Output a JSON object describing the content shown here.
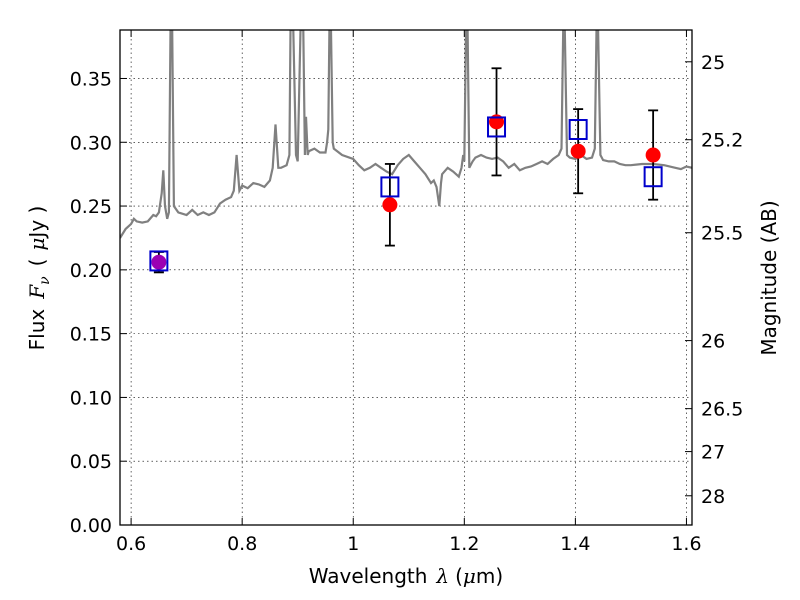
{
  "chart_data": {
    "type": "scatter",
    "xlabel": {
      "prefix": "Wavelength",
      "symbol": "λ",
      "unit_open": "(",
      "unit_mu": "μ",
      "unit_rest": "m)"
    },
    "ylabel": {
      "prefix": "Flux",
      "symbol": "F",
      "subscript": "ν",
      "unit_open": "(",
      "unit_mu": "μ",
      "unit_rest": "Jy )"
    },
    "y2label": "Magnitude (AB)",
    "xlim": [
      0.58,
      1.61
    ],
    "ylim": [
      0.0,
      0.388
    ],
    "grid": true,
    "x_ticks": [
      {
        "value": 0.6,
        "label": "0.6"
      },
      {
        "value": 0.8,
        "label": "0.8"
      },
      {
        "value": 1.0,
        "label": "1"
      },
      {
        "value": 1.2,
        "label": "1.2"
      },
      {
        "value": 1.4,
        "label": "1.4"
      },
      {
        "value": 1.6,
        "label": "1.6"
      }
    ],
    "y_ticks": [
      {
        "value": 0.0,
        "label": "0.00"
      },
      {
        "value": 0.05,
        "label": "0.05"
      },
      {
        "value": 0.1,
        "label": "0.10"
      },
      {
        "value": 0.15,
        "label": "0.15"
      },
      {
        "value": 0.2,
        "label": "0.20"
      },
      {
        "value": 0.25,
        "label": "0.25"
      },
      {
        "value": 0.3,
        "label": "0.30"
      },
      {
        "value": 0.35,
        "label": "0.35"
      }
    ],
    "y2_ticks": [
      {
        "value": 25,
        "label": "25"
      },
      {
        "value": 25.2,
        "label": "25.2"
      },
      {
        "value": 25.5,
        "label": "25.5"
      },
      {
        "value": 26,
        "label": "26"
      },
      {
        "value": 26.5,
        "label": "26.5"
      },
      {
        "value": 27,
        "label": "27"
      },
      {
        "value": 28,
        "label": "28"
      }
    ],
    "model_spectrum": {
      "color": "#808080",
      "points": [
        [
          0.58,
          0.225
        ],
        [
          0.59,
          0.232
        ],
        [
          0.6,
          0.236
        ],
        [
          0.605,
          0.24
        ],
        [
          0.61,
          0.238
        ],
        [
          0.62,
          0.237
        ],
        [
          0.63,
          0.238
        ],
        [
          0.64,
          0.243
        ],
        [
          0.645,
          0.242
        ],
        [
          0.65,
          0.245
        ],
        [
          0.655,
          0.26
        ],
        [
          0.658,
          0.278
        ],
        [
          0.661,
          0.25
        ],
        [
          0.665,
          0.24
        ],
        [
          0.668,
          0.245
        ],
        [
          0.671,
          0.388
        ],
        [
          0.674,
          0.388
        ],
        [
          0.677,
          0.25
        ],
        [
          0.685,
          0.245
        ],
        [
          0.7,
          0.243
        ],
        [
          0.71,
          0.247
        ],
        [
          0.72,
          0.243
        ],
        [
          0.73,
          0.245
        ],
        [
          0.74,
          0.243
        ],
        [
          0.75,
          0.245
        ],
        [
          0.76,
          0.252
        ],
        [
          0.77,
          0.255
        ],
        [
          0.78,
          0.257
        ],
        [
          0.785,
          0.262
        ],
        [
          0.79,
          0.29
        ],
        [
          0.795,
          0.262
        ],
        [
          0.8,
          0.266
        ],
        [
          0.81,
          0.264
        ],
        [
          0.82,
          0.268
        ],
        [
          0.83,
          0.267
        ],
        [
          0.84,
          0.265
        ],
        [
          0.85,
          0.27
        ],
        [
          0.855,
          0.28
        ],
        [
          0.86,
          0.314
        ],
        [
          0.865,
          0.28
        ],
        [
          0.87,
          0.28
        ],
        [
          0.88,
          0.282
        ],
        [
          0.885,
          0.29
        ],
        [
          0.887,
          0.388
        ],
        [
          0.892,
          0.388
        ],
        [
          0.897,
          0.29
        ],
        [
          0.9,
          0.285
        ],
        [
          0.905,
          0.388
        ],
        [
          0.91,
          0.388
        ],
        [
          0.913,
          0.29
        ],
        [
          0.915,
          0.32
        ],
        [
          0.918,
          0.29
        ],
        [
          0.92,
          0.293
        ],
        [
          0.93,
          0.295
        ],
        [
          0.94,
          0.292
        ],
        [
          0.95,
          0.292
        ],
        [
          0.953,
          0.3
        ],
        [
          0.955,
          0.31
        ],
        [
          0.957,
          0.388
        ],
        [
          0.96,
          0.388
        ],
        [
          0.963,
          0.3
        ],
        [
          0.965,
          0.295
        ],
        [
          0.98,
          0.29
        ],
        [
          1.0,
          0.287
        ],
        [
          1.01,
          0.282
        ],
        [
          1.02,
          0.278
        ],
        [
          1.03,
          0.28
        ],
        [
          1.04,
          0.283
        ],
        [
          1.05,
          0.28
        ],
        [
          1.06,
          0.277
        ],
        [
          1.07,
          0.275
        ],
        [
          1.08,
          0.282
        ],
        [
          1.09,
          0.287
        ],
        [
          1.1,
          0.29
        ],
        [
          1.11,
          0.285
        ],
        [
          1.12,
          0.28
        ],
        [
          1.13,
          0.275
        ],
        [
          1.14,
          0.268
        ],
        [
          1.145,
          0.27
        ],
        [
          1.15,
          0.265
        ],
        [
          1.155,
          0.25
        ],
        [
          1.158,
          0.268
        ],
        [
          1.16,
          0.275
        ],
        [
          1.17,
          0.28
        ],
        [
          1.18,
          0.277
        ],
        [
          1.19,
          0.273
        ],
        [
          1.195,
          0.28
        ],
        [
          1.198,
          0.29
        ],
        [
          1.2,
          0.285
        ],
        [
          1.203,
          0.388
        ],
        [
          1.206,
          0.388
        ],
        [
          1.209,
          0.28
        ],
        [
          1.215,
          0.285
        ],
        [
          1.22,
          0.288
        ],
        [
          1.23,
          0.29
        ],
        [
          1.24,
          0.288
        ],
        [
          1.25,
          0.287
        ],
        [
          1.26,
          0.288
        ],
        [
          1.27,
          0.285
        ],
        [
          1.28,
          0.28
        ],
        [
          1.29,
          0.283
        ],
        [
          1.3,
          0.278
        ],
        [
          1.31,
          0.28
        ],
        [
          1.32,
          0.281
        ],
        [
          1.33,
          0.283
        ],
        [
          1.34,
          0.285
        ],
        [
          1.35,
          0.283
        ],
        [
          1.36,
          0.287
        ],
        [
          1.37,
          0.29
        ],
        [
          1.375,
          0.295
        ],
        [
          1.378,
          0.388
        ],
        [
          1.381,
          0.388
        ],
        [
          1.385,
          0.29
        ],
        [
          1.39,
          0.288
        ],
        [
          1.4,
          0.287
        ],
        [
          1.41,
          0.29
        ],
        [
          1.42,
          0.287
        ],
        [
          1.43,
          0.288
        ],
        [
          1.435,
          0.295
        ],
        [
          1.438,
          0.388
        ],
        [
          1.441,
          0.388
        ],
        [
          1.445,
          0.29
        ],
        [
          1.45,
          0.286
        ],
        [
          1.46,
          0.285
        ],
        [
          1.47,
          0.285
        ],
        [
          1.48,
          0.283
        ],
        [
          1.49,
          0.282
        ],
        [
          1.5,
          0.282
        ],
        [
          1.52,
          0.283
        ],
        [
          1.54,
          0.283
        ],
        [
          1.56,
          0.282
        ],
        [
          1.58,
          0.28
        ],
        [
          1.59,
          0.279
        ],
        [
          1.6,
          0.281
        ],
        [
          1.61,
          0.28
        ]
      ]
    },
    "series": [
      {
        "marker": "circle",
        "color": "#ff0000",
        "points": [
          {
            "x": 0.65,
            "y": 0.206,
            "err": 0.008
          },
          {
            "x": 1.066,
            "y": 0.251,
            "err": 0.032
          },
          {
            "x": 1.258,
            "y": 0.316,
            "err": 0.042
          },
          {
            "x": 1.405,
            "y": 0.293,
            "err": 0.033
          },
          {
            "x": 1.54,
            "y": 0.29,
            "err": 0.035
          }
        ]
      },
      {
        "marker": "open-square",
        "color": "#0000cc",
        "points": [
          {
            "x": 0.65,
            "y": 0.207
          },
          {
            "x": 1.066,
            "y": 0.265
          },
          {
            "x": 1.258,
            "y": 0.312
          },
          {
            "x": 1.405,
            "y": 0.31
          },
          {
            "x": 1.54,
            "y": 0.273
          }
        ]
      }
    ],
    "overlap_color": "#9b00b3"
  }
}
